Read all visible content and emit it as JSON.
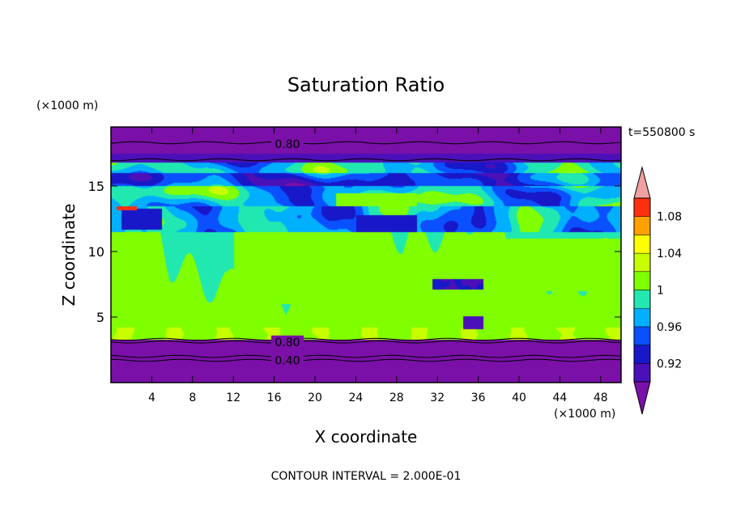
{
  "chart_data": {
    "type": "heatmap",
    "title": "Saturation Ratio",
    "xlabel": "X coordinate",
    "ylabel": "Z coordinate",
    "x_unit": "(×1000 m)",
    "y_unit": "(×1000 m)",
    "time_label": "t=550800 s",
    "footer": "CONTOUR INTERVAL = 2.000E-01",
    "xlim": [
      0,
      50
    ],
    "ylim": [
      0,
      19.5
    ],
    "x_ticks": [
      4,
      8,
      12,
      16,
      20,
      24,
      28,
      32,
      36,
      40,
      44,
      48
    ],
    "y_ticks": [
      5,
      10,
      15
    ],
    "contour_labels": [
      {
        "text": "0.80",
        "x": 17.3,
        "z": 18.2
      },
      {
        "text": "0.80",
        "x": 17.3,
        "z": 3.1
      },
      {
        "text": "0.40",
        "x": 17.3,
        "z": 1.7
      }
    ],
    "colorbar": {
      "levels": [
        "<0.90",
        "0.90-0.92",
        "0.92-0.94",
        "0.94-0.96",
        "0.96-0.98",
        "0.98-1.00",
        "1.00-1.02",
        "1.02-1.04",
        "1.04-1.06",
        "1.06-1.08",
        "1.08-1.10",
        ">1.10"
      ],
      "colors": [
        "#7a10a8",
        "#4b10b8",
        "#1818c8",
        "#0a50ff",
        "#00b0ff",
        "#20e8b0",
        "#80ff00",
        "#c8ff00",
        "#ffff00",
        "#ffa000",
        "#ff3010",
        "#f0a0a0"
      ],
      "tick_labels": [
        "0.92",
        "0.96",
        "1",
        "1.04",
        "1.08"
      ]
    }
  }
}
